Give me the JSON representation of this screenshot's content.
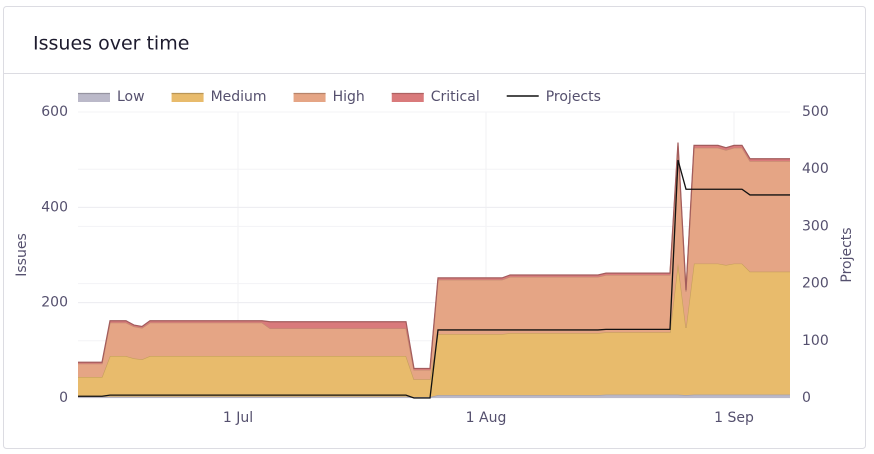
{
  "chart_data": {
    "type": "stacked-area",
    "title": "Issues over time",
    "y_label": "Issues",
    "y2_label": "Projects",
    "x": [
      "11 Jun",
      "12 Jun",
      "13 Jun",
      "14 Jun",
      "15 Jun",
      "16 Jun",
      "17 Jun",
      "18 Jun",
      "19 Jun",
      "20 Jun",
      "21 Jun",
      "22 Jun",
      "23 Jun",
      "24 Jun",
      "25 Jun",
      "26 Jun",
      "27 Jun",
      "28 Jun",
      "29 Jun",
      "30 Jun",
      "1 Jul",
      "2 Jul",
      "3 Jul",
      "4 Jul",
      "5 Jul",
      "6 Jul",
      "7 Jul",
      "8 Jul",
      "9 Jul",
      "10 Jul",
      "11 Jul",
      "12 Jul",
      "13 Jul",
      "14 Jul",
      "15 Jul",
      "16 Jul",
      "17 Jul",
      "18 Jul",
      "19 Jul",
      "20 Jul",
      "21 Jul",
      "22 Jul",
      "23 Jul",
      "24 Jul",
      "25 Jul",
      "26 Jul",
      "27 Jul",
      "28 Jul",
      "29 Jul",
      "30 Jul",
      "31 Jul",
      "1 Aug",
      "2 Aug",
      "3 Aug",
      "4 Aug",
      "5 Aug",
      "6 Aug",
      "7 Aug",
      "8 Aug",
      "9 Aug",
      "10 Aug",
      "11 Aug",
      "12 Aug",
      "13 Aug",
      "14 Aug",
      "15 Aug",
      "16 Aug",
      "17 Aug",
      "18 Aug",
      "19 Aug",
      "20 Aug",
      "21 Aug",
      "22 Aug",
      "23 Aug",
      "24 Aug",
      "25 Aug",
      "26 Aug",
      "27 Aug",
      "28 Aug",
      "29 Aug",
      "30 Aug",
      "31 Aug",
      "1 Sep",
      "2 Sep",
      "3 Sep",
      "4 Sep",
      "5 Sep",
      "6 Sep",
      "7 Sep",
      "8 Sep"
    ],
    "xticks": [
      "1 Jul",
      "1 Aug",
      "1 Sep"
    ],
    "ylim": [
      0,
      600
    ],
    "yticks": [
      0,
      200,
      400,
      600
    ],
    "y2lim": [
      0,
      500
    ],
    "y2ticks": [
      0,
      100,
      200,
      300,
      400,
      500
    ],
    "grid": true,
    "legend": "top",
    "series": [
      {
        "name": "Low",
        "color": "#bbb9c9",
        "values": [
          3,
          3,
          3,
          3,
          3,
          3,
          3,
          3,
          3,
          3,
          3,
          3,
          3,
          3,
          3,
          3,
          3,
          3,
          3,
          3,
          3,
          3,
          3,
          3,
          3,
          3,
          3,
          3,
          3,
          3,
          3,
          3,
          3,
          3,
          3,
          3,
          3,
          3,
          3,
          3,
          3,
          3,
          2,
          2,
          2,
          6,
          6,
          6,
          6,
          6,
          6,
          6,
          6,
          6,
          6,
          6,
          6,
          6,
          6,
          6,
          6,
          6,
          6,
          6,
          6,
          6,
          7,
          7,
          7,
          7,
          7,
          7,
          7,
          7,
          7,
          7,
          6,
          7,
          7,
          7,
          7,
          7,
          7,
          7,
          7,
          7,
          7,
          7,
          7,
          7
        ]
      },
      {
        "name": "Medium",
        "color": "#e8bb6c",
        "values": [
          41,
          41,
          41,
          41,
          85,
          85,
          85,
          80,
          78,
          85,
          85,
          85,
          85,
          85,
          85,
          85,
          85,
          85,
          85,
          85,
          85,
          85,
          85,
          85,
          85,
          85,
          85,
          85,
          85,
          85,
          85,
          85,
          85,
          85,
          85,
          85,
          85,
          85,
          85,
          85,
          85,
          85,
          37,
          37,
          37,
          128,
          128,
          128,
          128,
          128,
          128,
          128,
          128,
          128,
          130,
          130,
          130,
          130,
          130,
          130,
          130,
          130,
          130,
          130,
          130,
          130,
          131,
          131,
          131,
          131,
          131,
          131,
          131,
          131,
          131,
          276,
          141,
          275,
          275,
          275,
          275,
          272,
          275,
          275,
          258,
          258,
          258,
          258,
          258,
          258
        ]
      },
      {
        "name": "High",
        "color": "#e5a585",
        "values": [
          28,
          28,
          28,
          28,
          70,
          70,
          70,
          67,
          66,
          70,
          70,
          70,
          70,
          70,
          70,
          70,
          70,
          70,
          70,
          70,
          70,
          70,
          70,
          70,
          58,
          58,
          58,
          58,
          58,
          58,
          58,
          58,
          58,
          58,
          58,
          58,
          58,
          58,
          58,
          58,
          58,
          58,
          20,
          20,
          20,
          114,
          114,
          114,
          114,
          114,
          114,
          114,
          114,
          114,
          118,
          118,
          118,
          118,
          118,
          118,
          118,
          118,
          118,
          118,
          118,
          118,
          120,
          120,
          120,
          120,
          120,
          120,
          120,
          120,
          120,
          245,
          76,
          243,
          243,
          243,
          243,
          241,
          243,
          243,
          232,
          232,
          232,
          232,
          232,
          232
        ]
      },
      {
        "name": "Critical",
        "color": "#d97a7b",
        "values": [
          3,
          3,
          3,
          3,
          4,
          4,
          4,
          3,
          3,
          4,
          4,
          4,
          4,
          4,
          4,
          4,
          4,
          4,
          4,
          4,
          4,
          4,
          4,
          4,
          14,
          14,
          14,
          14,
          14,
          14,
          14,
          14,
          14,
          14,
          14,
          14,
          14,
          14,
          14,
          14,
          14,
          14,
          3,
          3,
          3,
          4,
          4,
          4,
          4,
          4,
          4,
          4,
          4,
          4,
          4,
          4,
          4,
          4,
          4,
          4,
          4,
          4,
          4,
          4,
          4,
          4,
          4,
          4,
          4,
          4,
          4,
          4,
          4,
          4,
          4,
          8,
          3,
          5,
          5,
          5,
          5,
          5,
          5,
          5,
          5,
          5,
          5,
          5,
          5,
          5
        ]
      },
      {
        "name": "Projects",
        "color": "#111111",
        "axis": "y2",
        "values": [
          3,
          3,
          3,
          3,
          5,
          5,
          5,
          5,
          5,
          5,
          5,
          5,
          5,
          5,
          5,
          5,
          5,
          5,
          5,
          5,
          5,
          5,
          5,
          5,
          5,
          5,
          5,
          5,
          5,
          5,
          5,
          5,
          5,
          5,
          5,
          5,
          5,
          5,
          5,
          5,
          5,
          5,
          0,
          0,
          0,
          119,
          119,
          119,
          119,
          119,
          119,
          119,
          119,
          119,
          119,
          119,
          119,
          119,
          119,
          119,
          119,
          119,
          119,
          119,
          119,
          119,
          120,
          120,
          120,
          120,
          120,
          120,
          120,
          120,
          120,
          416,
          365,
          365,
          365,
          365,
          365,
          365,
          365,
          365,
          355,
          355,
          355,
          355,
          355,
          355
        ]
      }
    ]
  }
}
